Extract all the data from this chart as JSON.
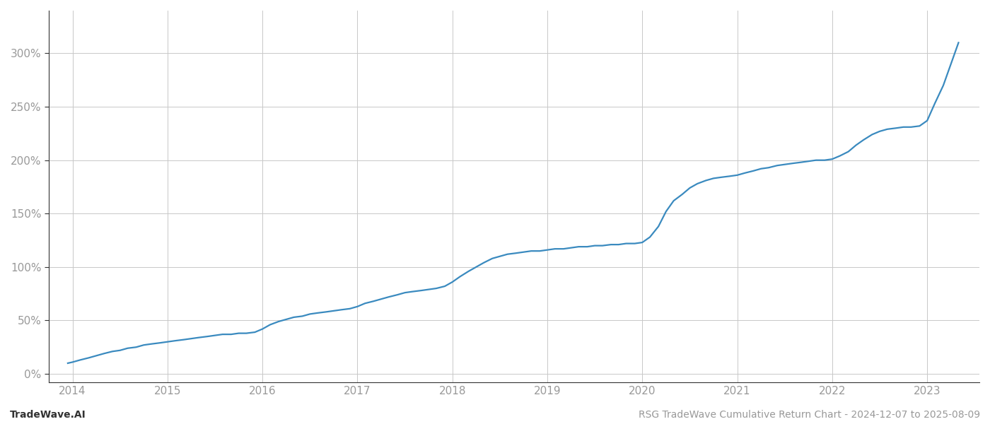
{
  "title": "",
  "footer_left": "TradeWave.AI",
  "footer_right": "RSG TradeWave Cumulative Return Chart - 2024-12-07 to 2025-08-09",
  "line_color": "#3a8abf",
  "background_color": "#ffffff",
  "grid_color": "#c8c8c8",
  "data_x": [
    2013.95,
    2014.0,
    2014.08,
    2014.17,
    2014.25,
    2014.33,
    2014.42,
    2014.5,
    2014.58,
    2014.67,
    2014.75,
    2014.83,
    2014.92,
    2015.0,
    2015.08,
    2015.17,
    2015.25,
    2015.33,
    2015.42,
    2015.5,
    2015.58,
    2015.67,
    2015.75,
    2015.83,
    2015.92,
    2016.0,
    2016.08,
    2016.17,
    2016.25,
    2016.33,
    2016.42,
    2016.5,
    2016.58,
    2016.67,
    2016.75,
    2016.83,
    2016.92,
    2017.0,
    2017.08,
    2017.17,
    2017.25,
    2017.33,
    2017.42,
    2017.5,
    2017.58,
    2017.67,
    2017.75,
    2017.83,
    2017.92,
    2018.0,
    2018.08,
    2018.17,
    2018.25,
    2018.33,
    2018.42,
    2018.5,
    2018.58,
    2018.67,
    2018.75,
    2018.83,
    2018.92,
    2019.0,
    2019.08,
    2019.17,
    2019.25,
    2019.33,
    2019.42,
    2019.5,
    2019.58,
    2019.67,
    2019.75,
    2019.83,
    2019.92,
    2020.0,
    2020.08,
    2020.17,
    2020.25,
    2020.33,
    2020.42,
    2020.5,
    2020.58,
    2020.67,
    2020.75,
    2020.83,
    2020.92,
    2021.0,
    2021.08,
    2021.17,
    2021.25,
    2021.33,
    2021.42,
    2021.5,
    2021.58,
    2021.67,
    2021.75,
    2021.83,
    2021.92,
    2022.0,
    2022.08,
    2022.17,
    2022.25,
    2022.33,
    2022.42,
    2022.5,
    2022.58,
    2022.67,
    2022.75,
    2022.83,
    2022.92,
    2023.0,
    2023.08,
    2023.17,
    2023.25,
    2023.33
  ],
  "data_y": [
    10,
    11,
    13,
    15,
    17,
    19,
    21,
    22,
    24,
    25,
    27,
    28,
    29,
    30,
    31,
    32,
    33,
    34,
    35,
    36,
    37,
    37,
    38,
    38,
    39,
    42,
    46,
    49,
    51,
    53,
    54,
    56,
    57,
    58,
    59,
    60,
    61,
    63,
    66,
    68,
    70,
    72,
    74,
    76,
    77,
    78,
    79,
    80,
    82,
    86,
    91,
    96,
    100,
    104,
    108,
    110,
    112,
    113,
    114,
    115,
    115,
    116,
    117,
    117,
    118,
    119,
    119,
    120,
    120,
    121,
    121,
    122,
    122,
    123,
    128,
    138,
    152,
    162,
    168,
    174,
    178,
    181,
    183,
    184,
    185,
    186,
    188,
    190,
    192,
    193,
    195,
    196,
    197,
    198,
    199,
    200,
    200,
    201,
    204,
    208,
    214,
    219,
    224,
    227,
    229,
    230,
    231,
    231,
    232,
    237,
    253,
    270,
    290,
    310
  ],
  "ylim": [
    -8,
    340
  ],
  "xlim": [
    2013.75,
    2023.55
  ],
  "x_years": [
    2014,
    2015,
    2016,
    2017,
    2018,
    2019,
    2020,
    2021,
    2022,
    2023
  ],
  "yticks": [
    0,
    50,
    100,
    150,
    200,
    250,
    300
  ],
  "ytick_labels": [
    "0%",
    "50%",
    "100%",
    "150%",
    "200%",
    "250%",
    "300%"
  ],
  "footer_fontsize": 10,
  "tick_color": "#999999",
  "spine_color": "#333333",
  "line_width": 1.6
}
